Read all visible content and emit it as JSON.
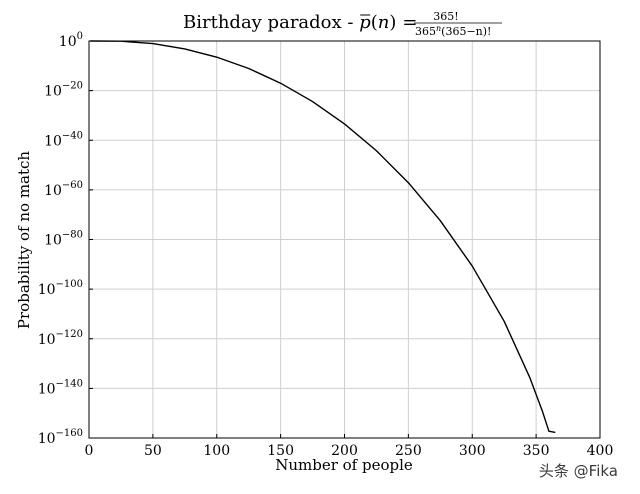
{
  "chart_data": {
    "type": "line",
    "title": {
      "prefix": "Birthday paradox - ",
      "p_symbol": "p",
      "paren_open": "(",
      "var_n": "n",
      "paren_close": ")",
      "equals": "=",
      "numerator": "365!",
      "denominator_base": "365",
      "denominator_exp": "n",
      "denominator_rest": "(365−n)!"
    },
    "xlabel": "Number of people",
    "ylabel": "Probability of no match",
    "xlim": [
      0,
      400
    ],
    "x_ticks": [
      0,
      50,
      100,
      150,
      200,
      250,
      300,
      350,
      400
    ],
    "y_scale": "log",
    "ylim_exponents": [
      -160,
      0
    ],
    "y_ticks": [
      {
        "base": "10",
        "exp": "0",
        "value_exp": 0
      },
      {
        "base": "10",
        "exp": "−20",
        "value_exp": -20
      },
      {
        "base": "10",
        "exp": "−40",
        "value_exp": -40
      },
      {
        "base": "10",
        "exp": "−60",
        "value_exp": -60
      },
      {
        "base": "10",
        "exp": "−80",
        "value_exp": -80
      },
      {
        "base": "10",
        "exp": "−100",
        "value_exp": -100
      },
      {
        "base": "10",
        "exp": "−120",
        "value_exp": -120
      },
      {
        "base": "10",
        "exp": "−140",
        "value_exp": -140
      },
      {
        "base": "10",
        "exp": "−160",
        "value_exp": -160
      }
    ],
    "grid": true,
    "series": [
      {
        "color": "#000000",
        "x_range": [
          1,
          365
        ],
        "formula": "365!/(365^n (365−n)!)",
        "points_log10": [
          [
            1,
            0
          ],
          [
            25,
            -0.0813
          ],
          [
            50,
            -1.0512
          ],
          [
            75,
            -3.2034
          ],
          [
            100,
            -6.5105
          ],
          [
            125,
            -11.079
          ],
          [
            150,
            -17.007
          ],
          [
            175,
            -24.403
          ],
          [
            200,
            -33.416
          ],
          [
            225,
            -44.234
          ],
          [
            250,
            -57.113
          ],
          [
            275,
            -72.418
          ],
          [
            300,
            -90.711
          ],
          [
            325,
            -112.97
          ],
          [
            345,
            -135.59
          ],
          [
            355,
            -149.33
          ],
          [
            360,
            -157.25
          ],
          [
            365,
            -157.74
          ]
        ]
      }
    ]
  },
  "watermark": "头条 @Fika"
}
